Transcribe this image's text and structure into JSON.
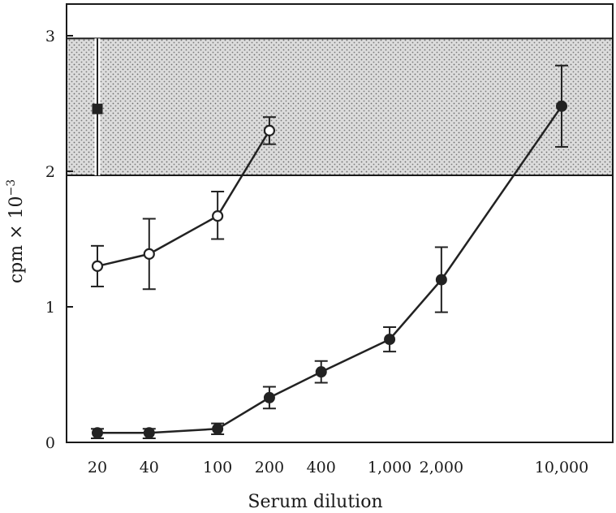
{
  "chart_data": {
    "type": "line",
    "title": "",
    "xlabel": "Serum dilution",
    "ylabel_base": "cpm × 10",
    "ylabel_exponent": "−3",
    "x_scale": "log",
    "xlim": [
      16,
      15000
    ],
    "ylim": [
      0,
      3.2
    ],
    "x_ticks": [
      {
        "value": 20,
        "label": "20"
      },
      {
        "value": 40,
        "label": "40"
      },
      {
        "value": 100,
        "label": "100"
      },
      {
        "value": 200,
        "label": "200"
      },
      {
        "value": 400,
        "label": "400"
      },
      {
        "value": 1000,
        "label": "1,000"
      },
      {
        "value": 2000,
        "label": "2,000"
      },
      {
        "value": 10000,
        "label": "10,000"
      }
    ],
    "y_ticks": [
      {
        "value": 0,
        "label": "0"
      },
      {
        "value": 1,
        "label": "1"
      },
      {
        "value": 2,
        "label": "2"
      },
      {
        "value": 3,
        "label": "3"
      }
    ],
    "shaded_band": {
      "y_low": 1.97,
      "y_high": 2.98
    },
    "grid": false,
    "legend": "none",
    "series": [
      {
        "marker": "open-circle",
        "color": "#222222",
        "points": [
          {
            "x": 20,
            "y": 1.3,
            "err_low": 1.15,
            "err_high": 1.45
          },
          {
            "x": 40,
            "y": 1.39,
            "err_low": 1.13,
            "err_high": 1.65
          },
          {
            "x": 100,
            "y": 1.67,
            "err_low": 1.5,
            "err_high": 1.85
          },
          {
            "x": 200,
            "y": 2.3,
            "err_low": 2.2,
            "err_high": 2.4
          }
        ]
      },
      {
        "marker": "filled-circle",
        "color": "#222222",
        "points": [
          {
            "x": 20,
            "y": 0.07,
            "err_low": 0.03,
            "err_high": 0.1
          },
          {
            "x": 40,
            "y": 0.07,
            "err_low": 0.03,
            "err_high": 0.1
          },
          {
            "x": 100,
            "y": 0.1,
            "err_low": 0.06,
            "err_high": 0.14
          },
          {
            "x": 200,
            "y": 0.33,
            "err_low": 0.25,
            "err_high": 0.41
          },
          {
            "x": 400,
            "y": 0.52,
            "err_low": 0.44,
            "err_high": 0.6
          },
          {
            "x": 1000,
            "y": 0.76,
            "err_low": 0.67,
            "err_high": 0.85
          },
          {
            "x": 2000,
            "y": 1.2,
            "err_low": 0.96,
            "err_high": 1.44
          },
          {
            "x": 10000,
            "y": 2.48,
            "err_low": 2.18,
            "err_high": 2.78
          }
        ]
      },
      {
        "marker": "filled-square",
        "color": "#222222",
        "points": [
          {
            "x": 20,
            "y": 2.46,
            "err_low": 1.97,
            "err_high": 2.98
          }
        ]
      }
    ]
  }
}
